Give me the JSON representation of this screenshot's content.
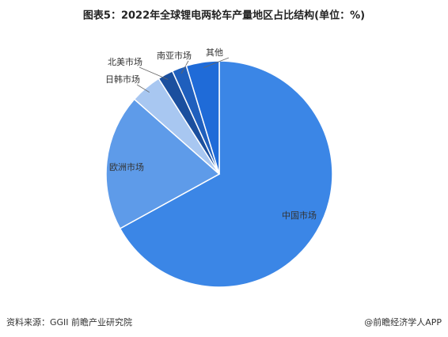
{
  "chart_data": {
    "type": "pie",
    "title": "图表5：2022年全球锂电两轮车产量地区占比结构(单位：%)",
    "categories": [
      "中国市场",
      "欧洲市场",
      "日韩市场",
      "北美市场",
      "南亚市场",
      "其他"
    ],
    "values": [
      67,
      19.5,
      4.5,
      2.2,
      2.1,
      4.7
    ],
    "colors": [
      "#3b86e6",
      "#5e9be9",
      "#a8c7f1",
      "#1b4f9e",
      "#1f5fbd",
      "#1f6bd8"
    ]
  },
  "source": "资料来源：GGII 前瞻产业研究院",
  "credit": "@前瞻经济学人APP"
}
